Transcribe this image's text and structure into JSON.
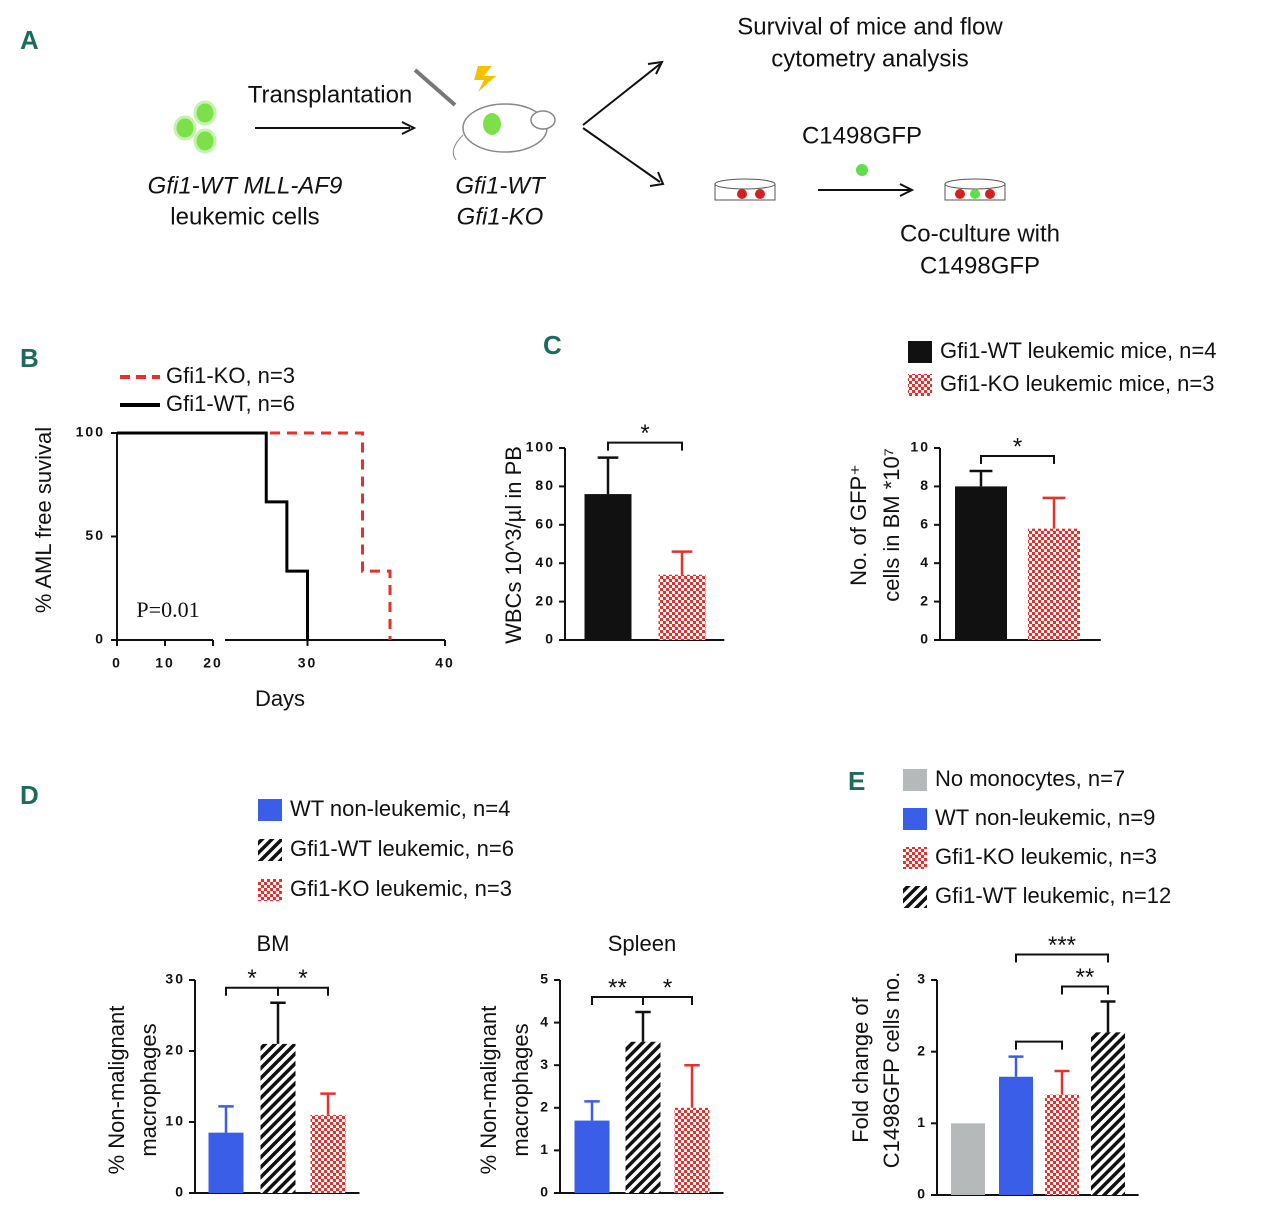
{
  "diagram": {
    "panel": "A",
    "transplantation": "Transplantation",
    "donor": [
      "Gfi1-WT MLL-AF9",
      "leukemic cells"
    ],
    "recipients": [
      "Gfi1-WT",
      "Gfi1-KO"
    ],
    "readout": [
      "Survival of mice and flow",
      "cytometry analysis"
    ],
    "reporter": "C1498GFP",
    "coculture": [
      "Co-culture with",
      "C1498GFP"
    ]
  },
  "chart_data": [
    {
      "type": "line",
      "panel": "B",
      "ylabel": "% AML free suvival",
      "xlabel": "Days",
      "annotation": "P=0.01",
      "xlim": [
        0,
        40
      ],
      "xbreak": [
        20,
        24
      ],
      "ylim": [
        0,
        100
      ],
      "xticks": [
        0,
        10,
        20,
        30,
        40
      ],
      "yticks": [
        0,
        50,
        100
      ],
      "series": [
        {
          "name": "Gfi1-KO, n=3",
          "color": "#e8302b",
          "line_style": "dashed",
          "x": [
            0,
            34,
            34,
            36,
            36
          ],
          "values": [
            100,
            100,
            33.3,
            33.3,
            0
          ]
        },
        {
          "name": "Gfi1-WT, n=6",
          "color": "#000000",
          "line_style": "solid",
          "x": [
            0,
            27,
            27,
            28.5,
            28.5,
            30,
            30
          ],
          "values": [
            100,
            100,
            66.7,
            66.7,
            33.3,
            33.3,
            0
          ]
        }
      ]
    },
    {
      "type": "bar",
      "panel": "C",
      "ylabel": [
        "WBCs 10^3/µl in PB"
      ],
      "values": [
        76,
        34
      ],
      "errors": [
        19,
        12
      ],
      "colors": [
        "#111111",
        "#e8302b"
      ],
      "patterns": [
        "solid",
        "checker"
      ],
      "ylim": [
        0,
        100
      ],
      "yticks": [
        0,
        20,
        40,
        60,
        80,
        100
      ],
      "comparisons": [
        {
          "groups": [
            0,
            1
          ],
          "label": "*"
        }
      ]
    },
    {
      "type": "bar",
      "ylabel": [
        "No. of  GFP⁺",
        "cells in BM *10⁷"
      ],
      "values": [
        8.0,
        5.8
      ],
      "errors": [
        0.8,
        1.6
      ],
      "colors": [
        "#111111",
        "#e8302b"
      ],
      "patterns": [
        "solid",
        "checker"
      ],
      "ylim": [
        0,
        10
      ],
      "yticks": [
        0,
        2,
        4,
        6,
        8,
        10
      ],
      "comparisons": [
        {
          "groups": [
            0,
            1
          ],
          "label": "*"
        }
      ],
      "legend": [
        {
          "name": "Gfi1-WT leukemic mice, n=4",
          "color": "#111111",
          "pattern": "solid"
        },
        {
          "name": "Gfi1-KO leukemic mice, n=3",
          "color": "#e8302b",
          "pattern": "checker"
        }
      ]
    },
    {
      "type": "bar",
      "panel": "D",
      "title": "BM",
      "ylabel": [
        "% Non-malignant",
        "macrophages"
      ],
      "values": [
        8.5,
        21,
        11
      ],
      "errors": [
        3.7,
        5.8,
        3
      ],
      "colors": [
        "#3b5ee8",
        "#111111",
        "#e8302b"
      ],
      "patterns": [
        "solid",
        "hatch",
        "checker"
      ],
      "ylim": [
        0,
        30
      ],
      "yticks": [
        0,
        10,
        20,
        30
      ],
      "comparisons": [
        {
          "groups": [
            0,
            1
          ],
          "label": "*"
        },
        {
          "groups": [
            1,
            2
          ],
          "label": "*"
        }
      ],
      "legend": [
        {
          "name": "WT non-leukemic, n=4",
          "color": "#3b5ee8",
          "pattern": "solid"
        },
        {
          "name": "Gfi1-WT leukemic, n=6",
          "color": "#111111",
          "pattern": "hatch"
        },
        {
          "name": "Gfi1-KO leukemic, n=3",
          "color": "#e8302b",
          "pattern": "checker"
        }
      ]
    },
    {
      "type": "bar",
      "title": "Spleen",
      "ylabel": [
        "% Non-malignant",
        "macrophages"
      ],
      "values": [
        1.7,
        3.55,
        2.0
      ],
      "errors": [
        0.45,
        0.7,
        1.0
      ],
      "colors": [
        "#3b5ee8",
        "#111111",
        "#e8302b"
      ],
      "patterns": [
        "solid",
        "hatch",
        "checker"
      ],
      "ylim": [
        0,
        5
      ],
      "yticks": [
        0,
        1,
        2,
        3,
        4,
        5
      ],
      "comparisons": [
        {
          "groups": [
            0,
            1
          ],
          "label": "**"
        },
        {
          "groups": [
            1,
            2
          ],
          "label": "*"
        }
      ]
    },
    {
      "type": "bar",
      "panel": "E",
      "ylabel": [
        "Fold change of",
        "C1498GFP cells no."
      ],
      "values": [
        1.0,
        1.65,
        1.4,
        2.27
      ],
      "errors": [
        null,
        0.28,
        0.33,
        0.43
      ],
      "colors": [
        "#b5b9ba",
        "#3b5ee8",
        "#e8302b",
        "#111111"
      ],
      "patterns": [
        "solid",
        "solid",
        "checker",
        "hatch"
      ],
      "ylim": [
        0,
        3
      ],
      "yticks": [
        0,
        1,
        2,
        3
      ],
      "comparisons": [
        {
          "groups": [
            1,
            3
          ],
          "label": "***"
        },
        {
          "groups": [
            2,
            3
          ],
          "label": "**"
        },
        {
          "groups": [
            1,
            2
          ]
        }
      ],
      "legend": [
        {
          "name": "No monocytes, n=7",
          "color": "#b5b9ba",
          "pattern": "solid"
        },
        {
          "name": "WT non-leukemic, n=9",
          "color": "#3b5ee8",
          "pattern": "solid"
        },
        {
          "name": "Gfi1-KO  leukemic, n=3",
          "color": "#e8302b",
          "pattern": "checker"
        },
        {
          "name": "Gfi1-WT leukemic, n=12",
          "color": "#111111",
          "pattern": "hatch"
        }
      ]
    }
  ]
}
